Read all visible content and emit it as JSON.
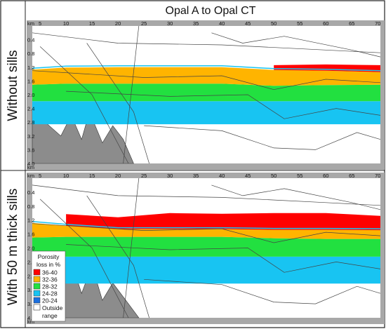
{
  "figure": {
    "title": "Opal A to Opal CT",
    "row_labels": [
      "Without sills",
      "With 50 m thick sills"
    ]
  },
  "axes": {
    "x_unit": "km",
    "y_unit": "km",
    "x_ticks": [
      5,
      10,
      15,
      20,
      25,
      30,
      35,
      40,
      45,
      50,
      55,
      60,
      65,
      70
    ],
    "y_ticks": [
      "0.4",
      "0.8",
      "1.2",
      "1.6",
      "2.0",
      "2.4",
      "2.8",
      "3.2",
      "3.6",
      "4.0"
    ]
  },
  "legend": {
    "title_line1": "Porosity",
    "title_line2": "loss in %",
    "items": [
      {
        "label": "36-40",
        "color": "#ff0000"
      },
      {
        "label": "32-36",
        "color": "#ffb400"
      },
      {
        "label": "28-32",
        "color": "#22e040"
      },
      {
        "label": "24-28",
        "color": "#18c4f2"
      },
      {
        "label": "20-24",
        "color": "#1a6fe0"
      }
    ],
    "outside_line1": "Outside",
    "outside_line2": "range",
    "outside_color": "#ffffff"
  },
  "colors": {
    "frame": "#a8a8a8",
    "basement": "#8c8c8c",
    "horizon": "#444444"
  },
  "chart_data": [
    {
      "type": "area",
      "panel": "Without sills",
      "x_range": [
        3.5,
        70.5
      ],
      "y_range_km_depth": [
        0,
        4.0
      ],
      "x": [
        3.5,
        10,
        20,
        30,
        40,
        50,
        60,
        70.5
      ],
      "series": [
        {
          "name": "36-40",
          "top": [
            null,
            null,
            null,
            null,
            null,
            1.14,
            1.12,
            1.14
          ],
          "bottom": [
            null,
            null,
            null,
            null,
            null,
            1.28,
            1.3,
            1.34
          ]
        },
        {
          "name": "32-36",
          "top": [
            1.27,
            1.21,
            1.2,
            1.2,
            1.2,
            1.28,
            1.3,
            1.34
          ],
          "bottom": [
            1.71,
            1.68,
            1.68,
            1.68,
            1.68,
            1.74,
            1.72,
            1.71
          ]
        },
        {
          "name": "28-32",
          "top": [
            1.71,
            1.68,
            1.68,
            1.68,
            1.68,
            1.74,
            1.72,
            1.71
          ],
          "bottom": [
            2.19,
            2.19,
            2.19,
            2.19,
            2.19,
            2.19,
            2.19,
            2.19
          ]
        },
        {
          "name": "24-28",
          "top": [
            2.19,
            2.19,
            2.19,
            2.19,
            2.19,
            2.19,
            2.19,
            2.19
          ],
          "bottom": [
            2.86,
            2.86,
            2.86,
            2.86,
            2.86,
            2.86,
            2.86,
            2.86
          ]
        }
      ]
    },
    {
      "type": "area",
      "panel": "With 50 m thick sills",
      "x_range": [
        3.5,
        70.5
      ],
      "y_range_km_depth": [
        0,
        4.0
      ],
      "x": [
        3.5,
        10,
        20,
        30,
        40,
        50,
        60,
        70.5
      ],
      "series": [
        {
          "name": "36-40",
          "top": [
            null,
            1.03,
            1.12,
            1.0,
            1.02,
            1.0,
            1.0,
            1.08
          ],
          "bottom": [
            null,
            1.36,
            1.46,
            1.46,
            1.46,
            1.48,
            1.48,
            1.49
          ]
        },
        {
          "name": "32-36",
          "top": [
            1.28,
            1.36,
            1.46,
            1.46,
            1.46,
            1.48,
            1.48,
            1.49
          ],
          "bottom": [
            1.7,
            1.68,
            1.68,
            1.68,
            1.68,
            1.72,
            1.74,
            1.74
          ]
        },
        {
          "name": "28-32",
          "top": [
            1.7,
            1.68,
            1.68,
            1.68,
            1.68,
            1.72,
            1.74,
            1.74
          ],
          "bottom": [
            2.25,
            2.25,
            2.25,
            2.25,
            2.25,
            2.25,
            2.25,
            2.25
          ]
        },
        {
          "name": "24-28",
          "top": [
            2.25,
            2.25,
            2.25,
            2.25,
            2.25,
            2.25,
            2.25,
            2.25
          ],
          "bottom": [
            3.02,
            3.02,
            3.02,
            3.02,
            3.02,
            3.02,
            3.02,
            3.02
          ]
        }
      ]
    }
  ]
}
